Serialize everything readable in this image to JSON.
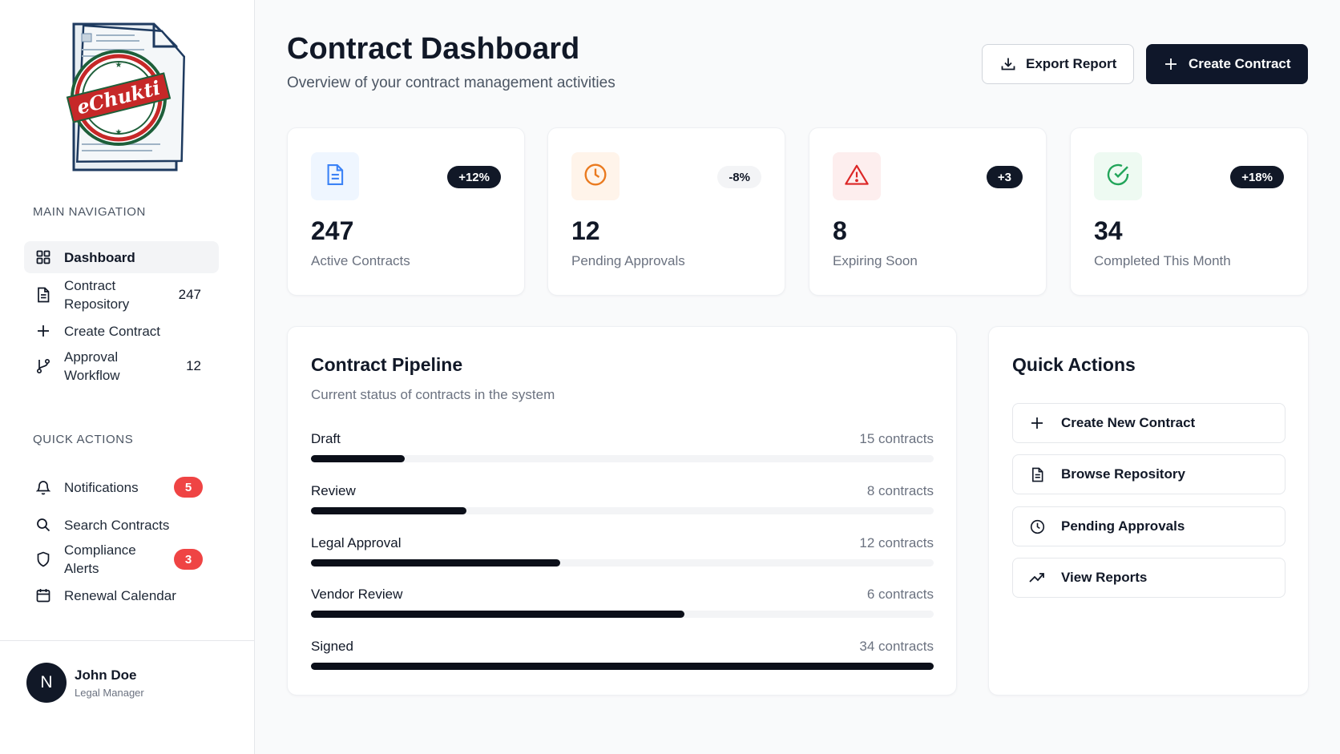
{
  "brand": {
    "logo_text": "eChukti"
  },
  "sidebar": {
    "main_nav_title": "MAIN NAVIGATION",
    "main_items": [
      {
        "label": "Dashboard",
        "icon": "grid-icon",
        "count": ""
      },
      {
        "label": "Contract Repository",
        "icon": "document-icon",
        "count": "247"
      },
      {
        "label": "Create Contract",
        "icon": "plus-icon",
        "count": ""
      },
      {
        "label": "Approval Workflow",
        "icon": "git-branch-icon",
        "count": "12"
      }
    ],
    "quick_title": "QUICK ACTIONS",
    "quick_items": [
      {
        "label": "Notifications",
        "icon": "bell-icon",
        "badge": "5"
      },
      {
        "label": "Search Contracts",
        "icon": "search-icon",
        "badge": ""
      },
      {
        "label": "Compliance Alerts",
        "icon": "shield-icon",
        "badge": "3"
      },
      {
        "label": "Renewal Calendar",
        "icon": "calendar-icon",
        "badge": ""
      }
    ],
    "user": {
      "initial": "N",
      "name": "John Doe",
      "role": "Legal Manager"
    }
  },
  "header": {
    "title": "Contract Dashboard",
    "subtitle": "Overview of your contract management activities",
    "export_label": "Export Report",
    "create_label": "Create Contract"
  },
  "stats": [
    {
      "value": "247",
      "label": "Active Contracts",
      "change": "+12%",
      "icon": "document-icon",
      "color": "#3b82f6",
      "bg": "#eff6ff"
    },
    {
      "value": "12",
      "label": "Pending Approvals",
      "change": "-8%",
      "icon": "clock-icon",
      "color": "#ea7a1f",
      "bg": "#fff4ea"
    },
    {
      "value": "8",
      "label": "Expiring Soon",
      "change": "+3",
      "icon": "alert-triangle-icon",
      "color": "#dc2626",
      "bg": "#fdeeee"
    },
    {
      "value": "34",
      "label": "Completed This Month",
      "change": "+18%",
      "icon": "check-circle-icon",
      "color": "#22a55a",
      "bg": "#eefaf2"
    }
  ],
  "pipeline": {
    "title": "Contract Pipeline",
    "subtitle": "Current status of contracts in the system",
    "stages": [
      {
        "name": "Draft",
        "count": "15 contracts",
        "progress": 0.15
      },
      {
        "name": "Review",
        "count": "8 contracts",
        "progress": 0.25
      },
      {
        "name": "Legal Approval",
        "count": "12 contracts",
        "progress": 0.4
      },
      {
        "name": "Vendor Review",
        "count": "6 contracts",
        "progress": 0.6
      },
      {
        "name": "Signed",
        "count": "34 contracts",
        "progress": 1.0
      }
    ]
  },
  "quick_actions": {
    "title": "Quick Actions",
    "items": [
      {
        "label": "Create New Contract",
        "icon": "plus-icon"
      },
      {
        "label": "Browse Repository",
        "icon": "document-icon"
      },
      {
        "label": "Pending Approvals",
        "icon": "clock-icon"
      },
      {
        "label": "View Reports",
        "icon": "trending-up-icon"
      }
    ]
  }
}
